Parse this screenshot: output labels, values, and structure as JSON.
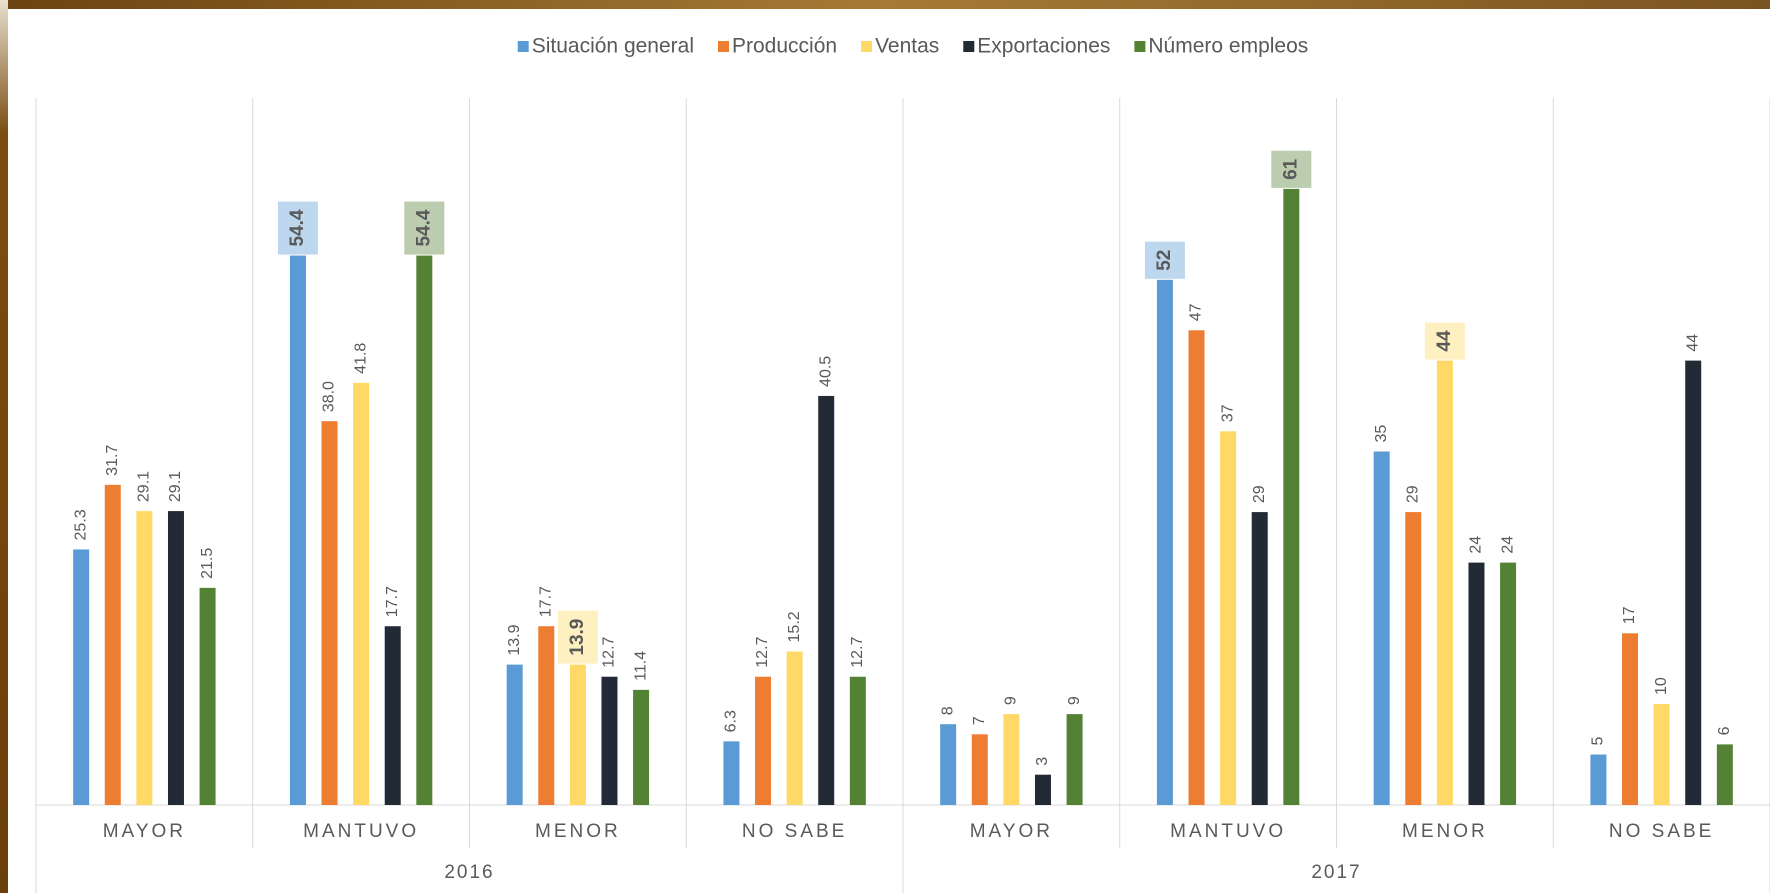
{
  "chart_data": {
    "type": "bar",
    "groups": [
      "2016",
      "2017"
    ],
    "categories": [
      "MAYOR",
      "MANTUVO",
      "MENOR",
      "NO SABE",
      "MAYOR",
      "MANTUVO",
      "MENOR",
      "NO SABE"
    ],
    "ylim": [
      0,
      70
    ],
    "grid": false,
    "legend": "top",
    "series": [
      {
        "name": "Situación general",
        "color": "#5b9bd5",
        "values": [
          25.3,
          54.4,
          13.9,
          6.3,
          8,
          52,
          35,
          5
        ],
        "value_labels": [
          "25.3",
          "54.4",
          "13.9",
          "6.3",
          "8",
          "52",
          "35",
          "5"
        ],
        "highlight": [
          1,
          5
        ]
      },
      {
        "name": "Producción",
        "color": "#ed7d31",
        "values": [
          31.7,
          38.0,
          17.7,
          12.7,
          7,
          47,
          29,
          17
        ],
        "value_labels": [
          "31.7",
          "38.0",
          "17.7",
          "12.7",
          "7",
          "47",
          "29",
          "17"
        ],
        "highlight": []
      },
      {
        "name": "Ventas",
        "color": "#ffd966",
        "values": [
          29.1,
          41.8,
          13.9,
          15.2,
          9,
          37,
          44,
          10
        ],
        "value_labels": [
          "29.1",
          "41.8",
          "13.9",
          "15.2",
          "9",
          "37",
          "44",
          "10"
        ],
        "highlight": [
          2,
          6
        ]
      },
      {
        "name": "Exportaciones",
        "color": "#222a35",
        "values": [
          29.1,
          17.7,
          12.7,
          40.5,
          3,
          29,
          24,
          44
        ],
        "value_labels": [
          "29.1",
          "17.7",
          "12.7",
          "40.5",
          "3",
          "29",
          "24",
          "44"
        ],
        "highlight": []
      },
      {
        "name": "Número empleos",
        "color": "#548235",
        "values": [
          21.5,
          54.4,
          11.4,
          12.7,
          9,
          61,
          24,
          6
        ],
        "value_labels": [
          "21.5",
          "54.4",
          "11.4",
          "12.7",
          "9",
          "61",
          "24",
          "6"
        ],
        "highlight": [
          1,
          5
        ]
      }
    ]
  }
}
